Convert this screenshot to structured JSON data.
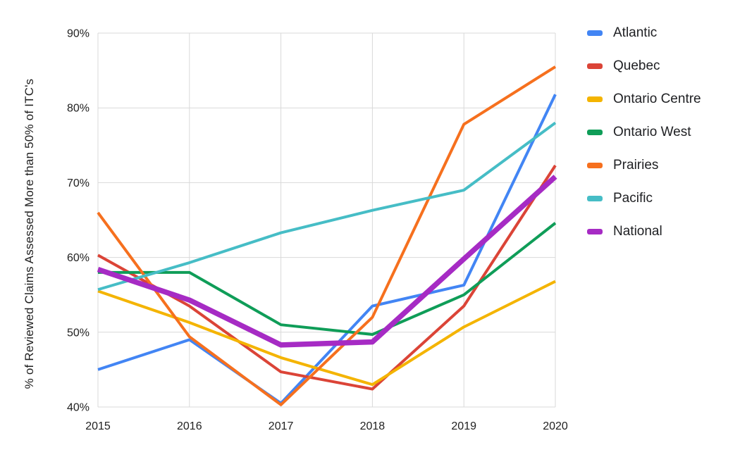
{
  "chart_data": {
    "type": "line",
    "title": "",
    "xlabel": "",
    "ylabel": "% of Reviewed Claims Assessed More than 50% of ITC's",
    "categories": [
      "2015",
      "2016",
      "2017",
      "2018",
      "2019",
      "2020"
    ],
    "ylim": [
      40,
      90
    ],
    "y_tick_values": [
      40,
      50,
      60,
      70,
      80,
      90
    ],
    "y_tick_labels": [
      "40%",
      "50%",
      "60%",
      "70%",
      "80%",
      "90%"
    ],
    "grid": true,
    "legend_position": "right",
    "grid_color": "#d9d9d9",
    "series": [
      {
        "name": "Atlantic",
        "color": "#4285F4",
        "line_width": 4,
        "values": [
          45.0,
          49.0,
          40.5,
          53.5,
          56.3,
          81.8
        ]
      },
      {
        "name": "Quebec",
        "color": "#DB4437",
        "line_width": 4,
        "values": [
          60.3,
          53.5,
          44.7,
          42.4,
          53.5,
          72.3
        ]
      },
      {
        "name": "Ontario Centre",
        "color": "#F4B400",
        "line_width": 4,
        "values": [
          55.5,
          51.3,
          46.6,
          43.0,
          50.7,
          56.8
        ]
      },
      {
        "name": "Ontario West",
        "color": "#0F9D58",
        "line_width": 4,
        "values": [
          58.0,
          58.0,
          51.0,
          49.7,
          55.0,
          64.6
        ]
      },
      {
        "name": "Prairies",
        "color": "#F6701E",
        "line_width": 4,
        "values": [
          66.0,
          49.4,
          40.3,
          52.0,
          77.8,
          85.5
        ]
      },
      {
        "name": "Pacific",
        "color": "#46BDC6",
        "line_width": 4,
        "values": [
          55.7,
          59.3,
          63.3,
          66.3,
          69.0,
          78.0
        ]
      },
      {
        "name": "National",
        "color": "#A62BC4",
        "line_width": 7.5,
        "values": [
          58.4,
          54.3,
          48.3,
          48.7,
          59.8,
          70.8
        ]
      }
    ]
  }
}
